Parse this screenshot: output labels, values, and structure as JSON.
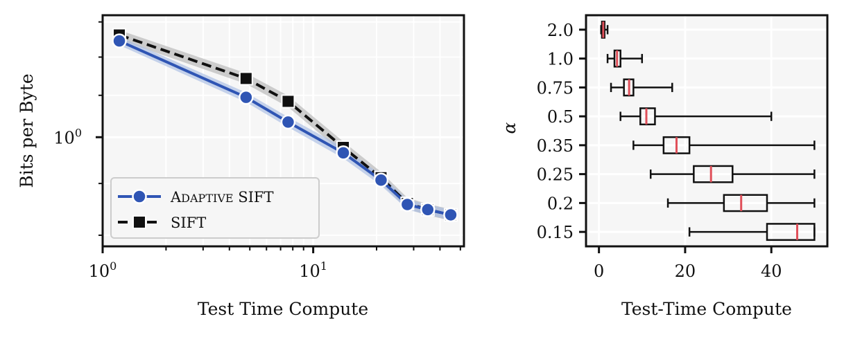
{
  "chart_data": [
    {
      "type": "line",
      "xlabel": "Test Time Compute",
      "ylabel": "Bits per Byte",
      "xscale": "log",
      "yscale": "log",
      "xlim": [
        1.0,
        52
      ],
      "ylim": [
        0.78,
        1.32
      ],
      "xticks": [
        {
          "value": 1,
          "label": "10",
          "exp": "0"
        },
        {
          "value": 10,
          "label": "10",
          "exp": "1"
        }
      ],
      "yticks": [
        {
          "value": 1.0,
          "label": "10",
          "exp": "0"
        }
      ],
      "grid": true,
      "legend": "lower-left",
      "series": [
        {
          "name": "Adaptive SIFT",
          "legend_main": "A",
          "legend_small": "DAPTIVE",
          "legend_rest": " SIFT",
          "color": "#2f55b4",
          "band_color": "#a9bde3",
          "marker": "circle",
          "linestyle": "solid",
          "x": [
            1.2,
            4.8,
            7.6,
            13.9,
            21.0,
            28.0,
            35.0,
            45.0
          ],
          "y": [
            1.245,
            1.095,
            1.035,
            0.965,
            0.907,
            0.858,
            0.848,
            0.838
          ],
          "band": [
            0.012,
            0.012,
            0.012,
            0.012,
            0.011,
            0.01,
            0.01,
            0.01
          ]
        },
        {
          "name": "SIFT",
          "color": "#111111",
          "band_color": "#b5b5b5",
          "marker": "square",
          "linestyle": "dashed",
          "x": [
            1.2,
            4.8,
            7.6,
            13.9,
            21.0,
            28.0,
            35.0,
            45.0
          ],
          "y": [
            1.262,
            1.143,
            1.085,
            0.977,
            0.912,
            0.86,
            0.848,
            0.838
          ],
          "band": [
            0.014,
            0.014,
            0.014,
            0.013,
            0.012,
            0.011,
            0.011,
            0.011
          ]
        }
      ]
    },
    {
      "type": "boxplot",
      "orientation": "horizontal",
      "xlabel": "Test-Time Compute",
      "ylabel": "α",
      "xlim": [
        -3,
        53
      ],
      "xticks": [
        0,
        20,
        40
      ],
      "grid": true,
      "median_color": "#e0505a",
      "categories": [
        "2.0",
        "1.0",
        "0.75",
        "0.5",
        "0.35",
        "0.25",
        "0.2",
        "0.15"
      ],
      "boxes": [
        {
          "label": "2.0",
          "whisker_low": 0.5,
          "q1": 0.7,
          "median": 1.0,
          "q3": 1.3,
          "whisker_high": 2.0
        },
        {
          "label": "1.0",
          "whisker_low": 2.0,
          "q1": 3.6,
          "median": 4.2,
          "q3": 5.0,
          "whisker_high": 10.0
        },
        {
          "label": "0.75",
          "whisker_low": 2.8,
          "q1": 5.8,
          "median": 7.0,
          "q3": 8.0,
          "whisker_high": 17.0
        },
        {
          "label": "0.5",
          "whisker_low": 5.0,
          "q1": 9.6,
          "median": 11.0,
          "q3": 13.0,
          "whisker_high": 40.0
        },
        {
          "label": "0.35",
          "whisker_low": 8.0,
          "q1": 15.0,
          "median": 18.0,
          "q3": 21.0,
          "whisker_high": 50.0
        },
        {
          "label": "0.25",
          "whisker_low": 12.0,
          "q1": 22.0,
          "median": 26.0,
          "q3": 31.0,
          "whisker_high": 50.0
        },
        {
          "label": "0.2",
          "whisker_low": 16.0,
          "q1": 29.0,
          "median": 33.0,
          "q3": 39.0,
          "whisker_high": 50.0
        },
        {
          "label": "0.15",
          "whisker_low": 21.0,
          "q1": 39.0,
          "median": 46.0,
          "q3": 50.0,
          "whisker_high": 50.0
        }
      ]
    }
  ]
}
